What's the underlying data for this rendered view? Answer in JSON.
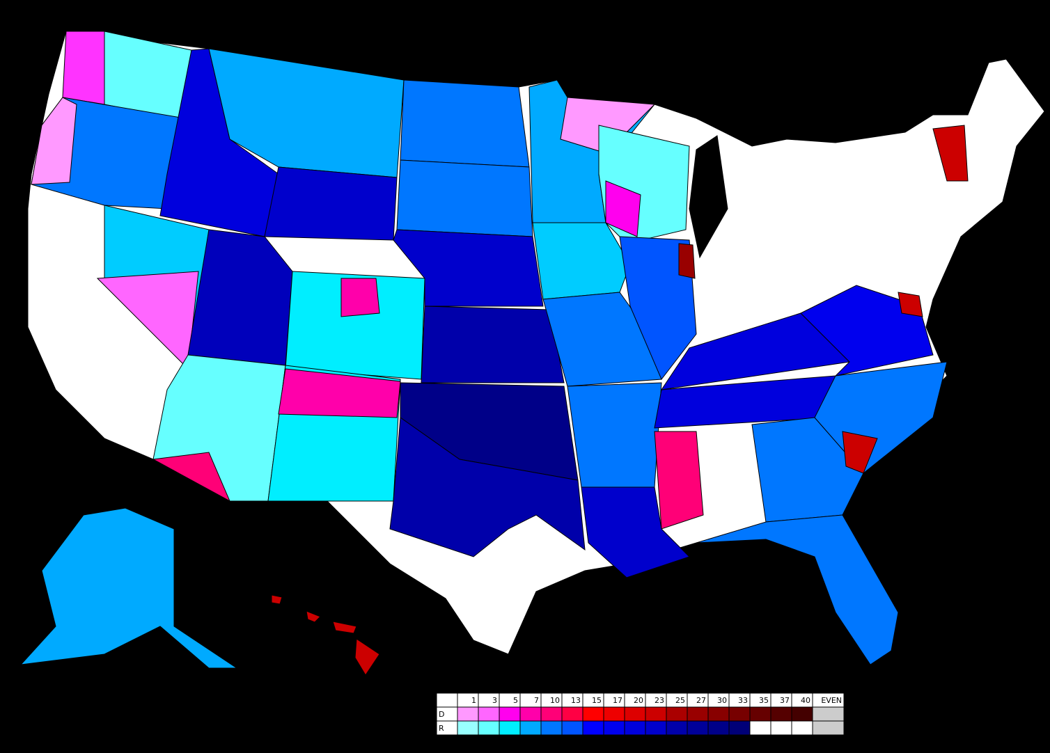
{
  "legend": {
    "headers": [
      "1",
      "3",
      "5",
      "7",
      "10",
      "13",
      "15",
      "17",
      "20",
      "23",
      "25",
      "27",
      "30",
      "33",
      "35",
      "37",
      "40",
      "EVEN"
    ],
    "rows": [
      {
        "label": "D",
        "colors": [
          "#ff99ff",
          "#ff66ff",
          "#ff00ee",
          "#ff00aa",
          "#ff0077",
          "#ff0044",
          "#ff0000",
          "#ee0000",
          "#dd0000",
          "#cc0000",
          "#aa0000",
          "#990000",
          "#880000",
          "#770000",
          "#660000",
          "#550000",
          "#440000",
          "#cccccc"
        ]
      },
      {
        "label": "R",
        "colors": [
          "#99ffff",
          "#66ffff",
          "#00eeff",
          "#00aaff",
          "#0077ff",
          "#0055ff",
          "#0000ff",
          "#0000ee",
          "#0000dd",
          "#0000cc",
          "#0000aa",
          "#000099",
          "#000088",
          "#000077",
          "#ffffff",
          "#ffffff",
          "#ffffff",
          "#cccccc"
        ]
      }
    ]
  }
}
